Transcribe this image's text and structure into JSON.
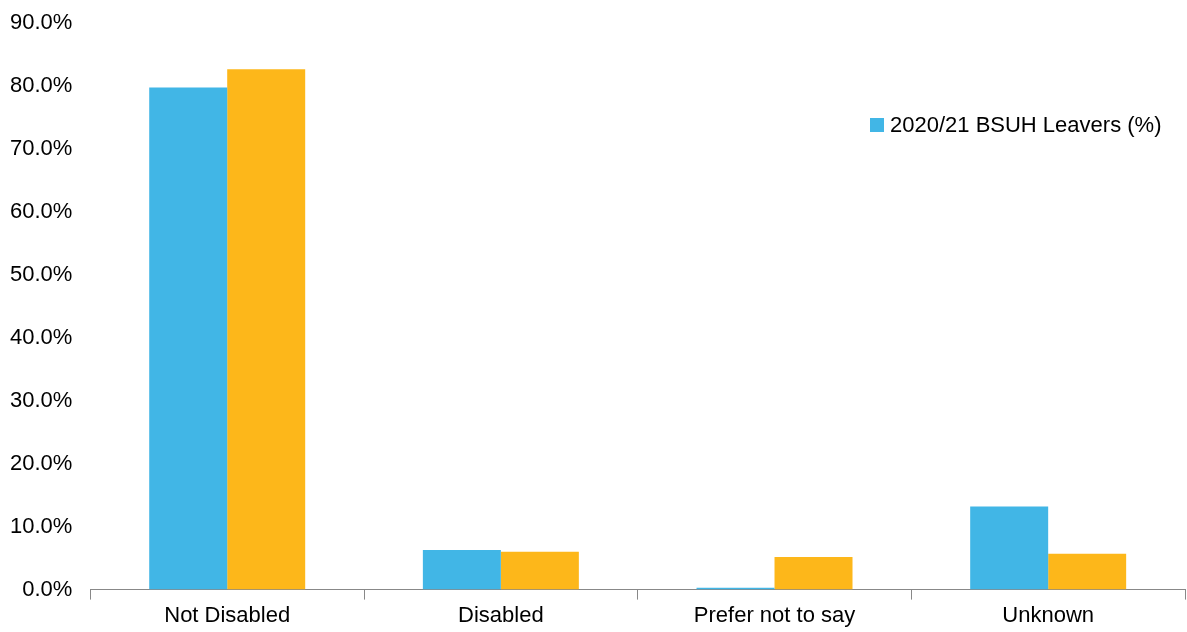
{
  "chart_data": {
    "type": "bar",
    "categories": [
      "Not Disabled",
      "Disabled",
      "Prefer not to say",
      "Unknown"
    ],
    "series": [
      {
        "name": "2020/21 BSUH Leavers (%)",
        "color": "#41b6e6",
        "values": [
          79.8,
          6.3,
          0.3,
          13.2
        ]
      },
      {
        "color": "#fdb71a",
        "values": [
          82.7,
          6.0,
          5.2,
          5.7
        ]
      }
    ],
    "ylim": [
      0,
      90
    ],
    "yticks": [
      {
        "value": 0,
        "label": "0.0%"
      },
      {
        "value": 10,
        "label": "10.0%"
      },
      {
        "value": 20,
        "label": "20.0%"
      },
      {
        "value": 30,
        "label": "30.0%"
      },
      {
        "value": 40,
        "label": "40.0%"
      },
      {
        "value": 50,
        "label": "50.0%"
      },
      {
        "value": 60,
        "label": "60.0%"
      },
      {
        "value": 70,
        "label": "70.0%"
      },
      {
        "value": 80,
        "label": "80.0%"
      },
      {
        "value": 90,
        "label": "90.0%"
      }
    ],
    "grid": false,
    "legend": "top right"
  }
}
